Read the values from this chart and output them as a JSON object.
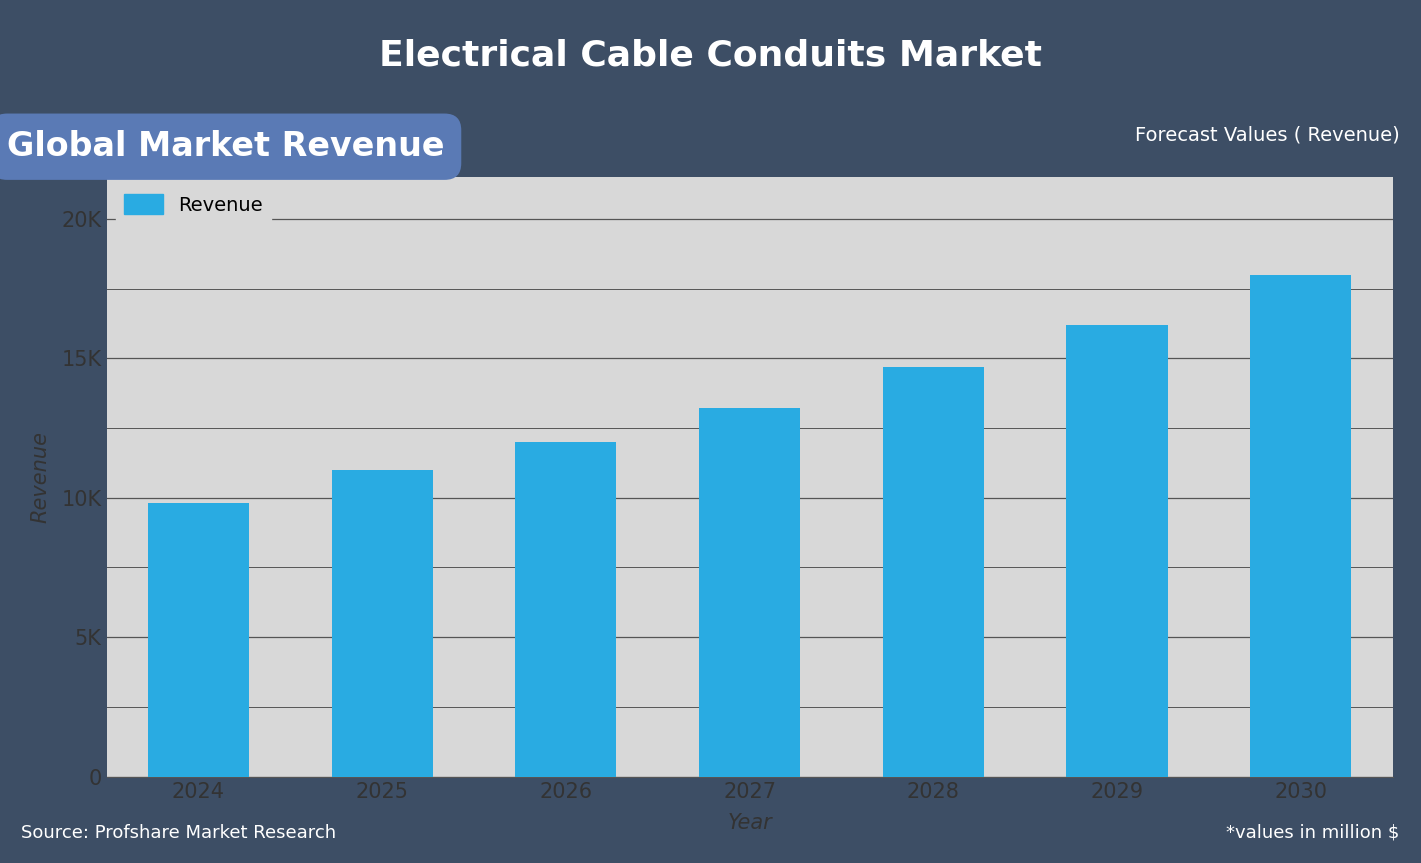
{
  "title": "Electrical Cable Conduits Market",
  "subtitle_left": "Global Market Revenue",
  "subtitle_right": "Forecast Values ( Revenue)",
  "xlabel": "Year",
  "ylabel": "Revenue",
  "footer_left": "Source: Profshare Market Research",
  "footer_right": "*values in million $",
  "legend_label": "Revenue",
  "years": [
    2024,
    2025,
    2026,
    2027,
    2028,
    2029,
    2030
  ],
  "values": [
    9800,
    11000,
    12000,
    13200,
    14700,
    16200,
    18000
  ],
  "bar_color": "#29ABE2",
  "background_color": "#3d4e65",
  "chart_bg_color": "#d8d8d8",
  "title_color": "#ffffff",
  "ytick_values": [
    0,
    5000,
    10000,
    15000,
    20000
  ],
  "minor_ytick_values": [
    2500,
    7500,
    12500,
    17500
  ],
  "ylim": [
    0,
    21500
  ],
  "grid_color": "#555555",
  "header_left_bg": "#5a7ab5",
  "bar_width": 0.55,
  "title_fontsize": 26,
  "subtitle_fontsize": 24,
  "forecast_fontsize": 14,
  "tick_fontsize": 15,
  "legend_fontsize": 14,
  "axis_label_fontsize": 15,
  "footer_fontsize": 13
}
